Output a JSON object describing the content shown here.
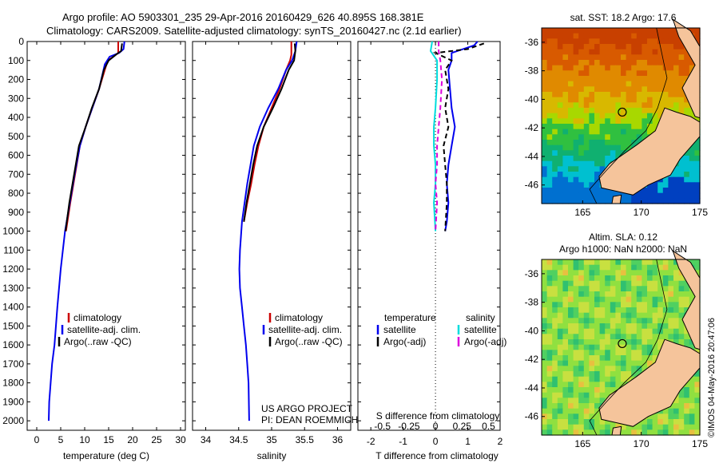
{
  "header": {
    "line1": "Argo profile: AO 5903301_235 29-Apr-2016 20160429_626 40.895S 168.381E",
    "line2": "Climatology: CARS2009. Satellite-adjusted climatology: synTS_20160427.nc (2.1d earlier)"
  },
  "footer": {
    "project": "US ARGO PROJECT",
    "pi": "PI: DEAN ROEMMICH",
    "stamp": "©IMOS 04-May-2016 20:47:06"
  },
  "colors": {
    "climatology": "#cc0000",
    "satellite": "#0000ee",
    "argo": "#000000",
    "salinity_sat": "#00dddd",
    "salinity_argo": "#dd00dd",
    "land": "#f5c49b"
  },
  "chart_data": [
    {
      "type": "line",
      "xlabel": "temperature (deg C)",
      "ylabel": "",
      "xlim": [
        -2,
        31
      ],
      "ylim": [
        2050,
        0
      ],
      "xticks": [
        0,
        5,
        10,
        15,
        20,
        25,
        30
      ],
      "yticks": [
        0,
        100,
        200,
        300,
        400,
        500,
        600,
        700,
        800,
        900,
        1000,
        1100,
        1200,
        1300,
        1400,
        1500,
        1600,
        1700,
        1800,
        1900,
        2000
      ],
      "legend": [
        "climatology",
        "satellite-adj. clim.",
        "Argo(..raw -QC)"
      ],
      "series": [
        {
          "name": "climatology",
          "color": "#cc0000",
          "x": [
            17.0,
            17.0,
            16.0,
            14.8,
            14.2,
            13.0,
            11.6,
            10.2,
            9.0,
            8.0,
            7.0,
            6.1
          ],
          "y": [
            0,
            60,
            80,
            100,
            150,
            250,
            350,
            450,
            550,
            700,
            850,
            1000
          ]
        },
        {
          "name": "satellite-adj. clim.",
          "color": "#0000ee",
          "x": [
            18.3,
            18.1,
            17.2,
            15.2,
            14.2,
            13.0,
            11.6,
            10.2,
            9.0,
            7.9,
            6.9,
            5.9,
            5.0,
            4.3,
            3.7,
            3.2,
            2.9,
            2.6,
            2.5
          ],
          "y": [
            0,
            40,
            60,
            80,
            120,
            250,
            350,
            450,
            550,
            700,
            850,
            1000,
            1200,
            1400,
            1600,
            1700,
            1800,
            1900,
            2000
          ]
        },
        {
          "name": "Argo(..raw -QC)",
          "color": "#000000",
          "x": [
            17.8,
            17.6,
            16.5,
            15.0,
            14.0,
            13.0,
            11.5,
            10.2,
            8.8,
            7.8,
            6.8,
            6.0
          ],
          "y": [
            10,
            50,
            70,
            100,
            150,
            250,
            350,
            450,
            550,
            700,
            850,
            1000
          ]
        }
      ]
    },
    {
      "type": "line",
      "xlabel": "salinity",
      "ylabel": "",
      "xlim": [
        33.8,
        36.2
      ],
      "ylim": [
        2050,
        0
      ],
      "xticks": [
        34,
        34.5,
        35,
        35.5,
        36
      ],
      "legend": [
        "climatology",
        "satellite-adj. clim.",
        "Argo(..raw -QC)"
      ],
      "series": [
        {
          "name": "climatology",
          "color": "#cc0000",
          "x": [
            35.3,
            35.3,
            35.28,
            35.22,
            35.12,
            35.0,
            34.88,
            34.8,
            34.74,
            34.69,
            34.63,
            34.58
          ],
          "y": [
            0,
            70,
            100,
            150,
            250,
            350,
            450,
            550,
            650,
            750,
            850,
            950
          ]
        },
        {
          "name": "satellite-adj. clim.",
          "color": "#0000ee",
          "x": [
            35.38,
            35.36,
            35.31,
            35.22,
            35.1,
            34.95,
            34.82,
            34.73,
            34.68,
            34.63,
            34.59,
            34.55,
            34.52,
            34.51,
            34.52,
            34.55,
            34.58,
            34.61,
            34.63,
            34.65,
            34.66
          ],
          "y": [
            0,
            50,
            100,
            150,
            250,
            350,
            450,
            550,
            650,
            750,
            850,
            950,
            1100,
            1200,
            1300,
            1400,
            1500,
            1600,
            1700,
            1800,
            2000
          ]
        },
        {
          "name": "Argo(..raw -QC)",
          "color": "#000000",
          "x": [
            35.35,
            35.36,
            35.34,
            35.26,
            35.15,
            35.02,
            34.88,
            34.78,
            34.72,
            34.67,
            34.62,
            34.58
          ],
          "y": [
            10,
            50,
            100,
            150,
            250,
            350,
            450,
            550,
            650,
            750,
            850,
            950
          ]
        }
      ]
    },
    {
      "type": "line",
      "title": "",
      "xlabel": "T difference from climatology",
      "xlabel_top": "S difference from climatology",
      "xlim": [
        -2.4,
        2.0
      ],
      "ylim": [
        2050,
        0
      ],
      "xticks": [
        -2,
        -1,
        0,
        1,
        2
      ],
      "xticks_s": [
        "-0.5",
        "-0.25",
        "0",
        "0.25",
        "0.5"
      ],
      "legend_groups": [
        "temperature",
        "salinity"
      ],
      "legend": [
        "satellite",
        "Argo(-adj)",
        "satellite",
        "Argo(-adj)"
      ],
      "series": [
        {
          "name": "temperature satellite",
          "color": "#0000ee",
          "x": [
            1.3,
            1.2,
            0.5,
            0.5,
            0.4,
            0.45,
            0.5,
            0.6,
            0.5,
            0.4,
            0.35,
            0.4,
            0.35,
            0.3
          ],
          "y": [
            0,
            20,
            60,
            100,
            150,
            250,
            350,
            450,
            550,
            650,
            750,
            850,
            950,
            1000
          ]
        },
        {
          "name": "temperature Argo(-adj)",
          "color": "#000000",
          "x": [
            1.5,
            1.0,
            0.0,
            0.5,
            0.3,
            0.4,
            0.3,
            0.4,
            0.25,
            0.3,
            0.35,
            0.35,
            0.3
          ],
          "y": [
            10,
            40,
            60,
            100,
            150,
            250,
            350,
            450,
            550,
            650,
            750,
            850,
            1000
          ]
        },
        {
          "name": "salinity satellite",
          "color": "#00dddd",
          "x": [
            -0.1,
            -0.15,
            0.05,
            0.05,
            0.0,
            -0.05,
            -0.05,
            0.0,
            0.0,
            -0.05,
            0.0
          ],
          "y": [
            0,
            50,
            100,
            200,
            350,
            450,
            550,
            650,
            750,
            850,
            1000
          ]
        },
        {
          "name": "salinity Argo(-adj)",
          "color": "#dd00dd",
          "x": [
            0.1,
            0.1,
            0.15,
            0.2,
            0.15,
            0.1,
            0.05,
            0.05,
            0.0,
            0.05,
            0.0
          ],
          "y": [
            0,
            50,
            100,
            200,
            350,
            450,
            550,
            650,
            750,
            850,
            1000
          ]
        }
      ]
    },
    {
      "type": "heatmap",
      "title": "sat. SST: 18.2  Argo: 17.6",
      "xlim": [
        161.5,
        175
      ],
      "ylim": [
        -47.3,
        -35
      ],
      "xticks": [
        165,
        170,
        175
      ],
      "yticks": [
        -36,
        -38,
        -40,
        -42,
        -44,
        -46
      ],
      "marker": {
        "lon": 168.381,
        "lat": -40.895
      }
    },
    {
      "type": "heatmap",
      "title": "Altim. SLA: 0.12",
      "subtitle": "Argo h1000: NaN h2000: NaN",
      "xlim": [
        161.5,
        175
      ],
      "ylim": [
        -47.3,
        -35
      ],
      "xticks": [
        165,
        170,
        175
      ],
      "yticks": [
        -36,
        -38,
        -40,
        -42,
        -44,
        -46
      ],
      "marker": {
        "lon": 168.381,
        "lat": -40.895
      }
    }
  ]
}
